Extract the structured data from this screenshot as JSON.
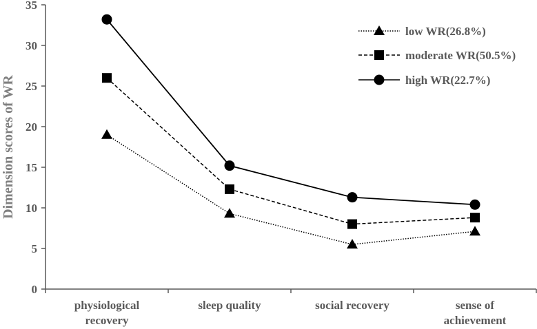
{
  "chart_data": {
    "type": "line",
    "ylabel": "Dimension scores of WR",
    "ylim": [
      0,
      35
    ],
    "yticks": [
      "0",
      "5",
      "10",
      "15",
      "20",
      "25",
      "30",
      "35"
    ],
    "categories": [
      [
        "physiological",
        "recovery"
      ],
      [
        "sleep quality"
      ],
      [
        "social recovery"
      ],
      [
        "sense of",
        "achievement"
      ]
    ],
    "legend_position": "top-right",
    "grid": false,
    "series": [
      {
        "name": "low WR(26.8%)",
        "values": [
          19.0,
          9.3,
          5.5,
          7.1
        ],
        "marker": "triangle",
        "line_style": "dotted",
        "color": "#000000"
      },
      {
        "name": "moderate WR(50.5%)",
        "values": [
          26.0,
          12.3,
          8.0,
          8.8
        ],
        "marker": "square",
        "line_style": "dashed",
        "color": "#000000"
      },
      {
        "name": "high WR(22.7%)",
        "values": [
          33.2,
          15.2,
          11.3,
          10.4
        ],
        "marker": "circle",
        "line_style": "solid",
        "color": "#000000"
      }
    ]
  }
}
